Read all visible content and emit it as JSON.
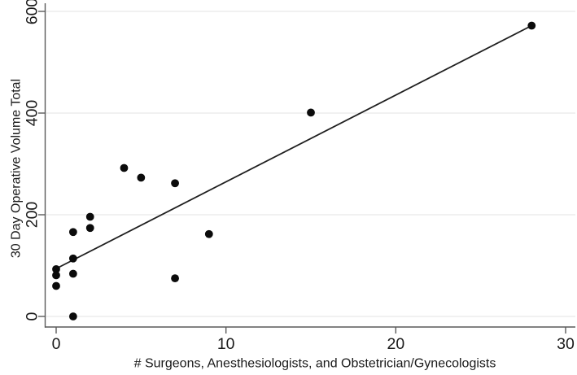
{
  "chart_data": {
    "type": "scatter",
    "title": "",
    "xlabel": "# Surgeons, Anesthesiologists, and Obstetrician/Gynecologists",
    "ylabel": "30 Day Operative Volume Total",
    "xlim": [
      0,
      30
    ],
    "ylim": [
      0,
      600
    ],
    "x_ticks": [
      "0",
      "10",
      "20",
      "30"
    ],
    "x_tick_values": [
      0,
      10,
      20,
      30
    ],
    "y_ticks": [
      "0",
      "200",
      "400",
      "600"
    ],
    "y_tick_values": [
      0,
      200,
      400,
      600
    ],
    "grid": "horizontal-only",
    "legend": "none",
    "marker": "filled-circle",
    "points": [
      {
        "x": 0,
        "y": 93
      },
      {
        "x": 0,
        "y": 81
      },
      {
        "x": 0,
        "y": 60
      },
      {
        "x": 1,
        "y": 0
      },
      {
        "x": 1,
        "y": 84
      },
      {
        "x": 1,
        "y": 114
      },
      {
        "x": 1,
        "y": 166
      },
      {
        "x": 2,
        "y": 174
      },
      {
        "x": 2,
        "y": 196
      },
      {
        "x": 4,
        "y": 292
      },
      {
        "x": 5,
        "y": 273
      },
      {
        "x": 7,
        "y": 75
      },
      {
        "x": 7,
        "y": 262
      },
      {
        "x": 9,
        "y": 162
      },
      {
        "x": 15,
        "y": 401
      },
      {
        "x": 28,
        "y": 572
      }
    ],
    "fit_line": {
      "x1": 0,
      "y1": 94,
      "x2": 28,
      "y2": 572
    },
    "colors": {
      "background": "#ffffff",
      "marker": "#0b0b0b",
      "fit_line": "#1f1f1f",
      "grid": "#e3e3e3",
      "axis": "#5a5a5a",
      "text": "#1a1a1a"
    }
  }
}
